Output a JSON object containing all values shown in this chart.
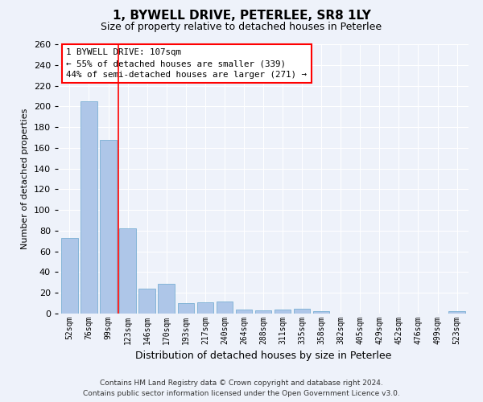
{
  "title1": "1, BYWELL DRIVE, PETERLEE, SR8 1LY",
  "title2": "Size of property relative to detached houses in Peterlee",
  "xlabel": "Distribution of detached houses by size in Peterlee",
  "ylabel": "Number of detached properties",
  "categories": [
    "52sqm",
    "76sqm",
    "99sqm",
    "123sqm",
    "146sqm",
    "170sqm",
    "193sqm",
    "217sqm",
    "240sqm",
    "264sqm",
    "288sqm",
    "311sqm",
    "335sqm",
    "358sqm",
    "382sqm",
    "405sqm",
    "429sqm",
    "452sqm",
    "476sqm",
    "499sqm",
    "523sqm"
  ],
  "values": [
    73,
    205,
    168,
    82,
    24,
    29,
    10,
    11,
    12,
    4,
    3,
    4,
    5,
    2,
    0,
    0,
    0,
    0,
    0,
    0,
    2
  ],
  "bar_color": "#aec6e8",
  "bar_edge_color": "#7aafd4",
  "red_line_x": 2.5,
  "annotation_title": "1 BYWELL DRIVE: 107sqm",
  "annotation_line1": "← 55% of detached houses are smaller (339)",
  "annotation_line2": "44% of semi-detached houses are larger (271) →",
  "ylim": [
    0,
    260
  ],
  "yticks": [
    0,
    20,
    40,
    60,
    80,
    100,
    120,
    140,
    160,
    180,
    200,
    220,
    240,
    260
  ],
  "footer1": "Contains HM Land Registry data © Crown copyright and database right 2024.",
  "footer2": "Contains public sector information licensed under the Open Government Licence v3.0.",
  "bg_color": "#eef2fa",
  "plot_bg_color": "#eef2fa"
}
